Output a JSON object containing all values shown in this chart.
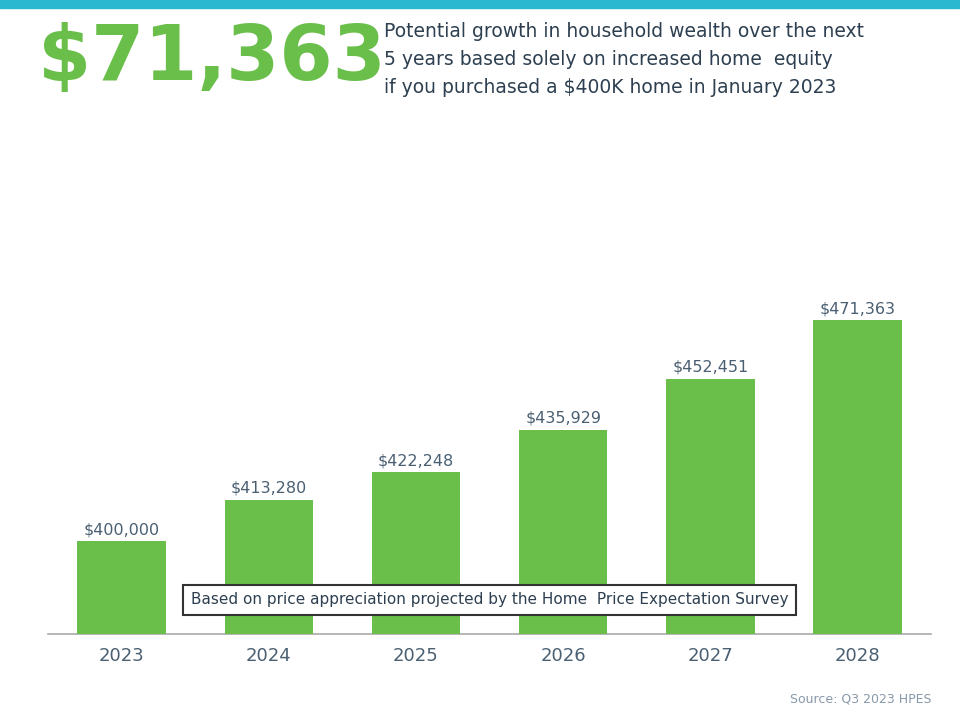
{
  "years": [
    "2023",
    "2024",
    "2025",
    "2026",
    "2027",
    "2028"
  ],
  "values": [
    400000,
    413280,
    422248,
    435929,
    452451,
    471363
  ],
  "bar_color": "#6abf4b",
  "bar_labels": [
    "$400,000",
    "$413,280",
    "$422,248",
    "$435,929",
    "$452,451",
    "$471,363"
  ],
  "big_number": "$71,363",
  "big_number_color": "#6abf4b",
  "subtitle_text": "Potential growth in household wealth over the next\n5 years based solely on increased home  equity\nif you purchased a $400K home in January 2023",
  "subtitle_color": "#2d3f50",
  "footnote": "Based on price appreciation projected by the Home  Price Expectation Survey",
  "source": "Source: Q3 2023 HPES",
  "source_color": "#8899aa",
  "bar_label_color": "#4a5f72",
  "tick_label_color": "#4a5f72",
  "top_bar_color": "#29b8d0",
  "background_color": "#ffffff",
  "ylim_min": 370000,
  "ylim_max": 498000,
  "bar_width": 0.6
}
